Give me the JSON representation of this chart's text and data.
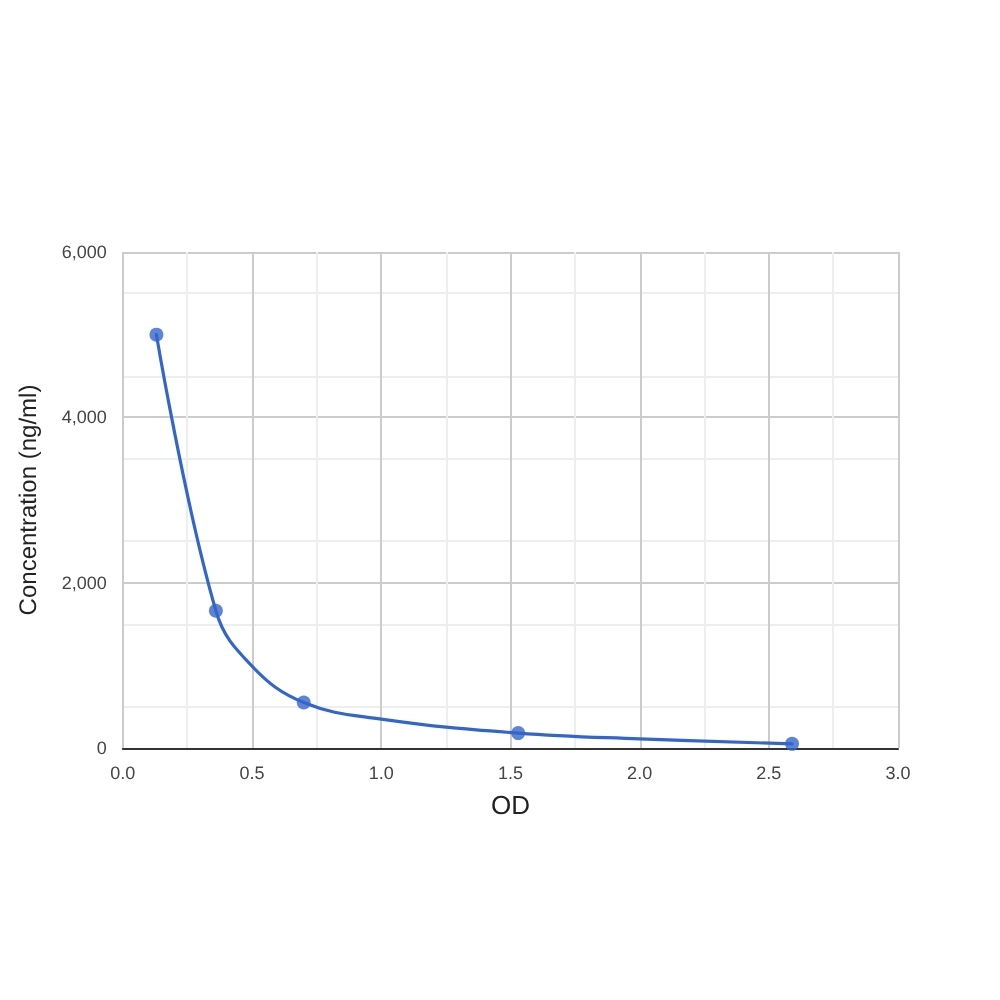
{
  "chart_data": {
    "type": "scatter",
    "xlabel": "OD",
    "ylabel": "Concentration (ng/ml)",
    "xlim": [
      0,
      3
    ],
    "xticks": [
      {
        "value": 0,
        "label": "0.0"
      },
      {
        "value": 0.5,
        "label": "0.5"
      },
      {
        "value": 1,
        "label": "1.0"
      },
      {
        "value": 1.5,
        "label": "1.5"
      },
      {
        "value": 2,
        "label": "2.0"
      },
      {
        "value": 2.5,
        "label": "2.5"
      },
      {
        "value": 3,
        "label": "3.0"
      }
    ],
    "ylim": [
      0,
      6000
    ],
    "yticks": [
      {
        "value": 0,
        "label": "0"
      },
      {
        "value": 2000,
        "label": "2,000"
      },
      {
        "value": 4000,
        "label": "4,000"
      },
      {
        "value": 6000,
        "label": "6,000"
      }
    ],
    "grid": true,
    "series": [
      {
        "color": "#3366cc",
        "x": [
          0.13,
          0.36,
          0.7,
          1.53,
          2.59
        ],
        "values": [
          5000,
          1660,
          550,
          180,
          50
        ],
        "marker": "circle"
      },
      {
        "type": "line",
        "color": "#3366cc",
        "x": [
          0.13,
          0.36,
          0.5,
          0.7,
          1.0,
          1.53,
          2.0,
          2.59
        ],
        "values": [
          5000,
          1660,
          990,
          550,
          350,
          180,
          110,
          50
        ],
        "marker": "none",
        "line_style": "solid"
      }
    ]
  }
}
